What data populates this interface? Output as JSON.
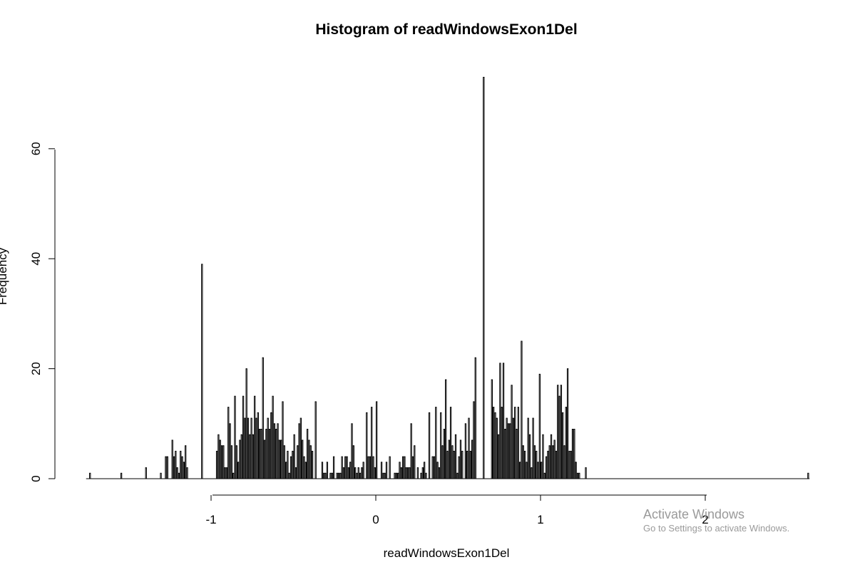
{
  "chart_data": {
    "type": "bar",
    "title": "Histogram of readWindowsExon1Del",
    "xlabel": "readWindowsExon1Del",
    "ylabel": "Frequency",
    "xlim": [
      -1.75,
      2.62
    ],
    "ylim": [
      0,
      73
    ],
    "x_ticks": [
      "-1",
      "0",
      "1",
      "2"
    ],
    "y_ticks": [
      "0",
      "20",
      "40",
      "60"
    ],
    "bin_width": 0.01,
    "grid": false,
    "legend": "none",
    "bins": [
      {
        "x": -1.74,
        "value": 1
      },
      {
        "x": -1.55,
        "value": 1
      },
      {
        "x": -1.4,
        "value": 2
      },
      {
        "x": -1.31,
        "value": 1
      },
      {
        "x": -1.28,
        "value": 4
      },
      {
        "x": -1.27,
        "value": 4
      },
      {
        "x": -1.24,
        "value": 7
      },
      {
        "x": -1.23,
        "value": 4
      },
      {
        "x": -1.22,
        "value": 5
      },
      {
        "x": -1.21,
        "value": 2
      },
      {
        "x": -1.2,
        "value": 1
      },
      {
        "x": -1.19,
        "value": 5
      },
      {
        "x": -1.18,
        "value": 4
      },
      {
        "x": -1.17,
        "value": 3
      },
      {
        "x": -1.16,
        "value": 6
      },
      {
        "x": -1.15,
        "value": 2
      },
      {
        "x": -1.06,
        "value": 39
      },
      {
        "x": -0.97,
        "value": 5
      },
      {
        "x": -0.96,
        "value": 8
      },
      {
        "x": -0.95,
        "value": 7
      },
      {
        "x": -0.94,
        "value": 6
      },
      {
        "x": -0.93,
        "value": 6
      },
      {
        "x": -0.92,
        "value": 2
      },
      {
        "x": -0.91,
        "value": 2
      },
      {
        "x": -0.9,
        "value": 13
      },
      {
        "x": -0.89,
        "value": 10
      },
      {
        "x": -0.88,
        "value": 6
      },
      {
        "x": -0.87,
        "value": 1
      },
      {
        "x": -0.86,
        "value": 15
      },
      {
        "x": -0.85,
        "value": 6
      },
      {
        "x": -0.84,
        "value": 3
      },
      {
        "x": -0.83,
        "value": 7
      },
      {
        "x": -0.82,
        "value": 8
      },
      {
        "x": -0.81,
        "value": 15
      },
      {
        "x": -0.8,
        "value": 11
      },
      {
        "x": -0.79,
        "value": 20
      },
      {
        "x": -0.78,
        "value": 11
      },
      {
        "x": -0.77,
        "value": 8
      },
      {
        "x": -0.76,
        "value": 11
      },
      {
        "x": -0.75,
        "value": 8
      },
      {
        "x": -0.74,
        "value": 15
      },
      {
        "x": -0.73,
        "value": 11
      },
      {
        "x": -0.72,
        "value": 12
      },
      {
        "x": -0.71,
        "value": 9
      },
      {
        "x": -0.7,
        "value": 9
      },
      {
        "x": -0.69,
        "value": 22
      },
      {
        "x": -0.68,
        "value": 7
      },
      {
        "x": -0.67,
        "value": 9
      },
      {
        "x": -0.66,
        "value": 11
      },
      {
        "x": -0.65,
        "value": 9
      },
      {
        "x": -0.64,
        "value": 12
      },
      {
        "x": -0.63,
        "value": 15
      },
      {
        "x": -0.62,
        "value": 10
      },
      {
        "x": -0.61,
        "value": 9
      },
      {
        "x": -0.6,
        "value": 10
      },
      {
        "x": -0.59,
        "value": 7
      },
      {
        "x": -0.58,
        "value": 7
      },
      {
        "x": -0.57,
        "value": 14
      },
      {
        "x": -0.56,
        "value": 6
      },
      {
        "x": -0.55,
        "value": 3
      },
      {
        "x": -0.54,
        "value": 5
      },
      {
        "x": -0.53,
        "value": 1
      },
      {
        "x": -0.52,
        "value": 4
      },
      {
        "x": -0.51,
        "value": 5
      },
      {
        "x": -0.5,
        "value": 8
      },
      {
        "x": -0.49,
        "value": 2
      },
      {
        "x": -0.48,
        "value": 6
      },
      {
        "x": -0.47,
        "value": 10
      },
      {
        "x": -0.46,
        "value": 11
      },
      {
        "x": -0.45,
        "value": 7
      },
      {
        "x": -0.44,
        "value": 4
      },
      {
        "x": -0.43,
        "value": 3
      },
      {
        "x": -0.42,
        "value": 9
      },
      {
        "x": -0.41,
        "value": 7
      },
      {
        "x": -0.4,
        "value": 6
      },
      {
        "x": -0.39,
        "value": 5
      },
      {
        "x": -0.37,
        "value": 14
      },
      {
        "x": -0.33,
        "value": 3
      },
      {
        "x": -0.32,
        "value": 1
      },
      {
        "x": -0.31,
        "value": 1
      },
      {
        "x": -0.3,
        "value": 3
      },
      {
        "x": -0.28,
        "value": 1
      },
      {
        "x": -0.27,
        "value": 1
      },
      {
        "x": -0.26,
        "value": 4
      },
      {
        "x": -0.24,
        "value": 1
      },
      {
        "x": -0.23,
        "value": 1
      },
      {
        "x": -0.22,
        "value": 1
      },
      {
        "x": -0.21,
        "value": 4
      },
      {
        "x": -0.2,
        "value": 2
      },
      {
        "x": -0.19,
        "value": 4
      },
      {
        "x": -0.18,
        "value": 4
      },
      {
        "x": -0.17,
        "value": 2
      },
      {
        "x": -0.16,
        "value": 3
      },
      {
        "x": -0.15,
        "value": 10
      },
      {
        "x": -0.14,
        "value": 6
      },
      {
        "x": -0.13,
        "value": 2
      },
      {
        "x": -0.12,
        "value": 1
      },
      {
        "x": -0.11,
        "value": 2
      },
      {
        "x": -0.1,
        "value": 1
      },
      {
        "x": -0.09,
        "value": 2
      },
      {
        "x": -0.08,
        "value": 3
      },
      {
        "x": -0.06,
        "value": 12
      },
      {
        "x": -0.05,
        "value": 4
      },
      {
        "x": -0.04,
        "value": 4
      },
      {
        "x": -0.03,
        "value": 13
      },
      {
        "x": -0.02,
        "value": 4
      },
      {
        "x": -0.01,
        "value": 2
      },
      {
        "x": 0.0,
        "value": 14
      },
      {
        "x": 0.03,
        "value": 3
      },
      {
        "x": 0.04,
        "value": 1
      },
      {
        "x": 0.05,
        "value": 1
      },
      {
        "x": 0.06,
        "value": 3
      },
      {
        "x": 0.08,
        "value": 4
      },
      {
        "x": 0.11,
        "value": 1
      },
      {
        "x": 0.12,
        "value": 1
      },
      {
        "x": 0.13,
        "value": 1
      },
      {
        "x": 0.14,
        "value": 3
      },
      {
        "x": 0.15,
        "value": 2
      },
      {
        "x": 0.16,
        "value": 4
      },
      {
        "x": 0.17,
        "value": 4
      },
      {
        "x": 0.18,
        "value": 2
      },
      {
        "x": 0.19,
        "value": 2
      },
      {
        "x": 0.2,
        "value": 2
      },
      {
        "x": 0.21,
        "value": 10
      },
      {
        "x": 0.22,
        "value": 4
      },
      {
        "x": 0.23,
        "value": 6
      },
      {
        "x": 0.25,
        "value": 2
      },
      {
        "x": 0.27,
        "value": 1
      },
      {
        "x": 0.28,
        "value": 2
      },
      {
        "x": 0.29,
        "value": 3
      },
      {
        "x": 0.3,
        "value": 1
      },
      {
        "x": 0.32,
        "value": 12
      },
      {
        "x": 0.34,
        "value": 4
      },
      {
        "x": 0.35,
        "value": 4
      },
      {
        "x": 0.36,
        "value": 13
      },
      {
        "x": 0.37,
        "value": 3
      },
      {
        "x": 0.38,
        "value": 2
      },
      {
        "x": 0.39,
        "value": 12
      },
      {
        "x": 0.4,
        "value": 6
      },
      {
        "x": 0.41,
        "value": 9
      },
      {
        "x": 0.42,
        "value": 18
      },
      {
        "x": 0.43,
        "value": 5
      },
      {
        "x": 0.44,
        "value": 7
      },
      {
        "x": 0.45,
        "value": 13
      },
      {
        "x": 0.46,
        "value": 6
      },
      {
        "x": 0.47,
        "value": 5
      },
      {
        "x": 0.48,
        "value": 8
      },
      {
        "x": 0.49,
        "value": 1
      },
      {
        "x": 0.5,
        "value": 4
      },
      {
        "x": 0.51,
        "value": 7
      },
      {
        "x": 0.52,
        "value": 5
      },
      {
        "x": 0.54,
        "value": 10
      },
      {
        "x": 0.55,
        "value": 5
      },
      {
        "x": 0.56,
        "value": 11
      },
      {
        "x": 0.57,
        "value": 5
      },
      {
        "x": 0.58,
        "value": 7
      },
      {
        "x": 0.59,
        "value": 14
      },
      {
        "x": 0.6,
        "value": 22
      },
      {
        "x": 0.65,
        "value": 73
      },
      {
        "x": 0.7,
        "value": 18
      },
      {
        "x": 0.71,
        "value": 13
      },
      {
        "x": 0.72,
        "value": 12
      },
      {
        "x": 0.73,
        "value": 11
      },
      {
        "x": 0.74,
        "value": 8
      },
      {
        "x": 0.75,
        "value": 21
      },
      {
        "x": 0.76,
        "value": 13
      },
      {
        "x": 0.77,
        "value": 21
      },
      {
        "x": 0.78,
        "value": 9
      },
      {
        "x": 0.79,
        "value": 11
      },
      {
        "x": 0.8,
        "value": 10
      },
      {
        "x": 0.81,
        "value": 10
      },
      {
        "x": 0.82,
        "value": 17
      },
      {
        "x": 0.83,
        "value": 11
      },
      {
        "x": 0.84,
        "value": 13
      },
      {
        "x": 0.85,
        "value": 9
      },
      {
        "x": 0.86,
        "value": 13
      },
      {
        "x": 0.87,
        "value": 3
      },
      {
        "x": 0.88,
        "value": 25
      },
      {
        "x": 0.89,
        "value": 6
      },
      {
        "x": 0.9,
        "value": 5
      },
      {
        "x": 0.91,
        "value": 3
      },
      {
        "x": 0.92,
        "value": 11
      },
      {
        "x": 0.93,
        "value": 8
      },
      {
        "x": 0.94,
        "value": 2
      },
      {
        "x": 0.95,
        "value": 11
      },
      {
        "x": 0.96,
        "value": 6
      },
      {
        "x": 0.97,
        "value": 5
      },
      {
        "x": 0.98,
        "value": 3
      },
      {
        "x": 0.99,
        "value": 19
      },
      {
        "x": 1.0,
        "value": 3
      },
      {
        "x": 1.01,
        "value": 8
      },
      {
        "x": 1.02,
        "value": 1
      },
      {
        "x": 1.03,
        "value": 4
      },
      {
        "x": 1.04,
        "value": 5
      },
      {
        "x": 1.05,
        "value": 6
      },
      {
        "x": 1.06,
        "value": 8
      },
      {
        "x": 1.07,
        "value": 6
      },
      {
        "x": 1.08,
        "value": 7
      },
      {
        "x": 1.09,
        "value": 5
      },
      {
        "x": 1.1,
        "value": 17
      },
      {
        "x": 1.11,
        "value": 15
      },
      {
        "x": 1.12,
        "value": 17
      },
      {
        "x": 1.13,
        "value": 12
      },
      {
        "x": 1.14,
        "value": 6
      },
      {
        "x": 1.15,
        "value": 13
      },
      {
        "x": 1.16,
        "value": 20
      },
      {
        "x": 1.17,
        "value": 5
      },
      {
        "x": 1.18,
        "value": 5
      },
      {
        "x": 1.19,
        "value": 9
      },
      {
        "x": 1.2,
        "value": 9
      },
      {
        "x": 1.21,
        "value": 3
      },
      {
        "x": 1.22,
        "value": 1
      },
      {
        "x": 1.23,
        "value": 1
      },
      {
        "x": 1.27,
        "value": 2
      },
      {
        "x": 2.62,
        "value": 1
      }
    ]
  },
  "watermark": {
    "line1": "Activate Windows",
    "line2": "Go to Settings to activate Windows."
  }
}
